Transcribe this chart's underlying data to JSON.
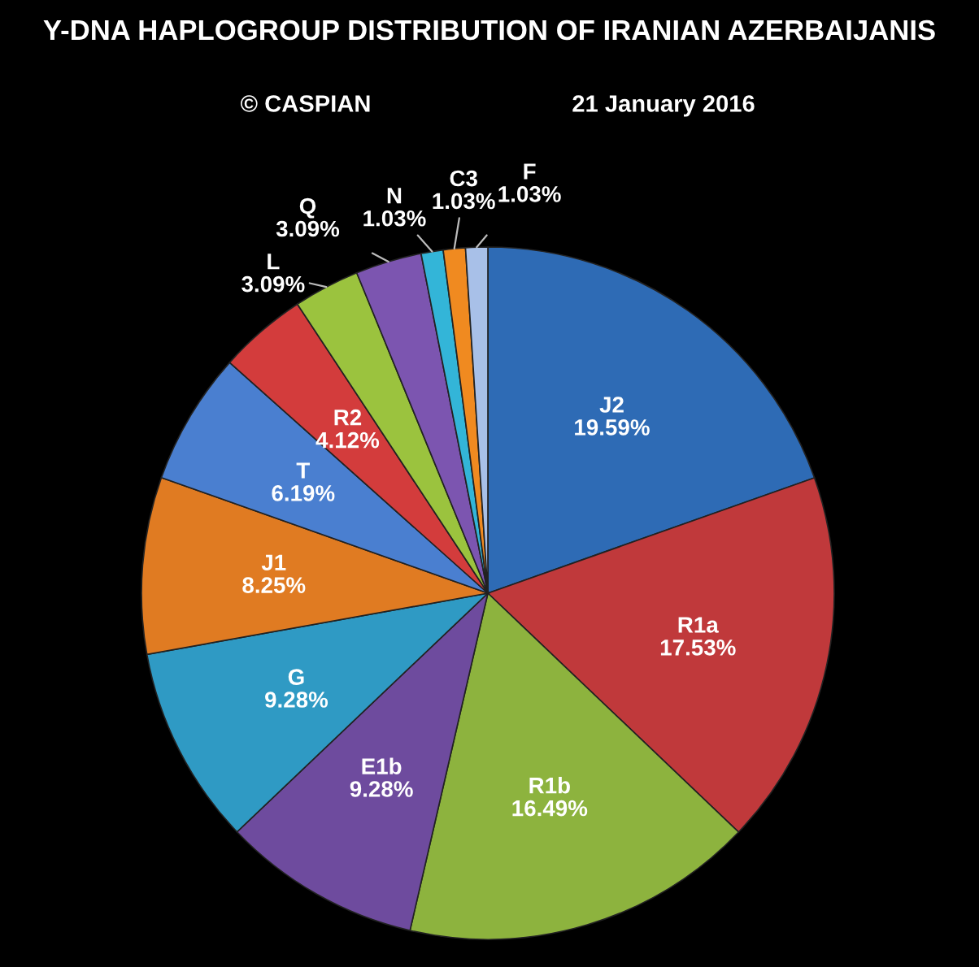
{
  "chart_data": {
    "type": "pie",
    "title": "Y-DNA HAPLOGROUP DISTRIBUTION OF IRANIAN AZERBAIJANIS",
    "annotations": [
      "© CASPIAN",
      "21 January 2016"
    ],
    "categories": [
      "J2",
      "R1a",
      "R1b",
      "E1b",
      "G",
      "J1",
      "T",
      "R2",
      "L",
      "Q",
      "N",
      "C3",
      "F"
    ],
    "values": [
      19.59,
      17.53,
      16.49,
      9.28,
      9.28,
      8.25,
      6.19,
      4.12,
      3.09,
      3.09,
      1.03,
      1.03,
      1.03
    ],
    "colors": [
      "#2e6bb5",
      "#c0393b",
      "#8db33e",
      "#6e4b9e",
      "#2f9ac4",
      "#e07b22",
      "#4a7fd0",
      "#d33c3c",
      "#9bc33e",
      "#7c55b0",
      "#33b5d8",
      "#f08a20",
      "#a8c0e8"
    ],
    "value_labels": [
      "19.59%",
      "17.53%",
      "16.49%",
      "9.28%",
      "9.28%",
      "8.25%",
      "6.19%",
      "4.12%",
      "3.09%",
      "3.09%",
      "1.03%",
      "1.03%",
      "1.03%"
    ]
  }
}
